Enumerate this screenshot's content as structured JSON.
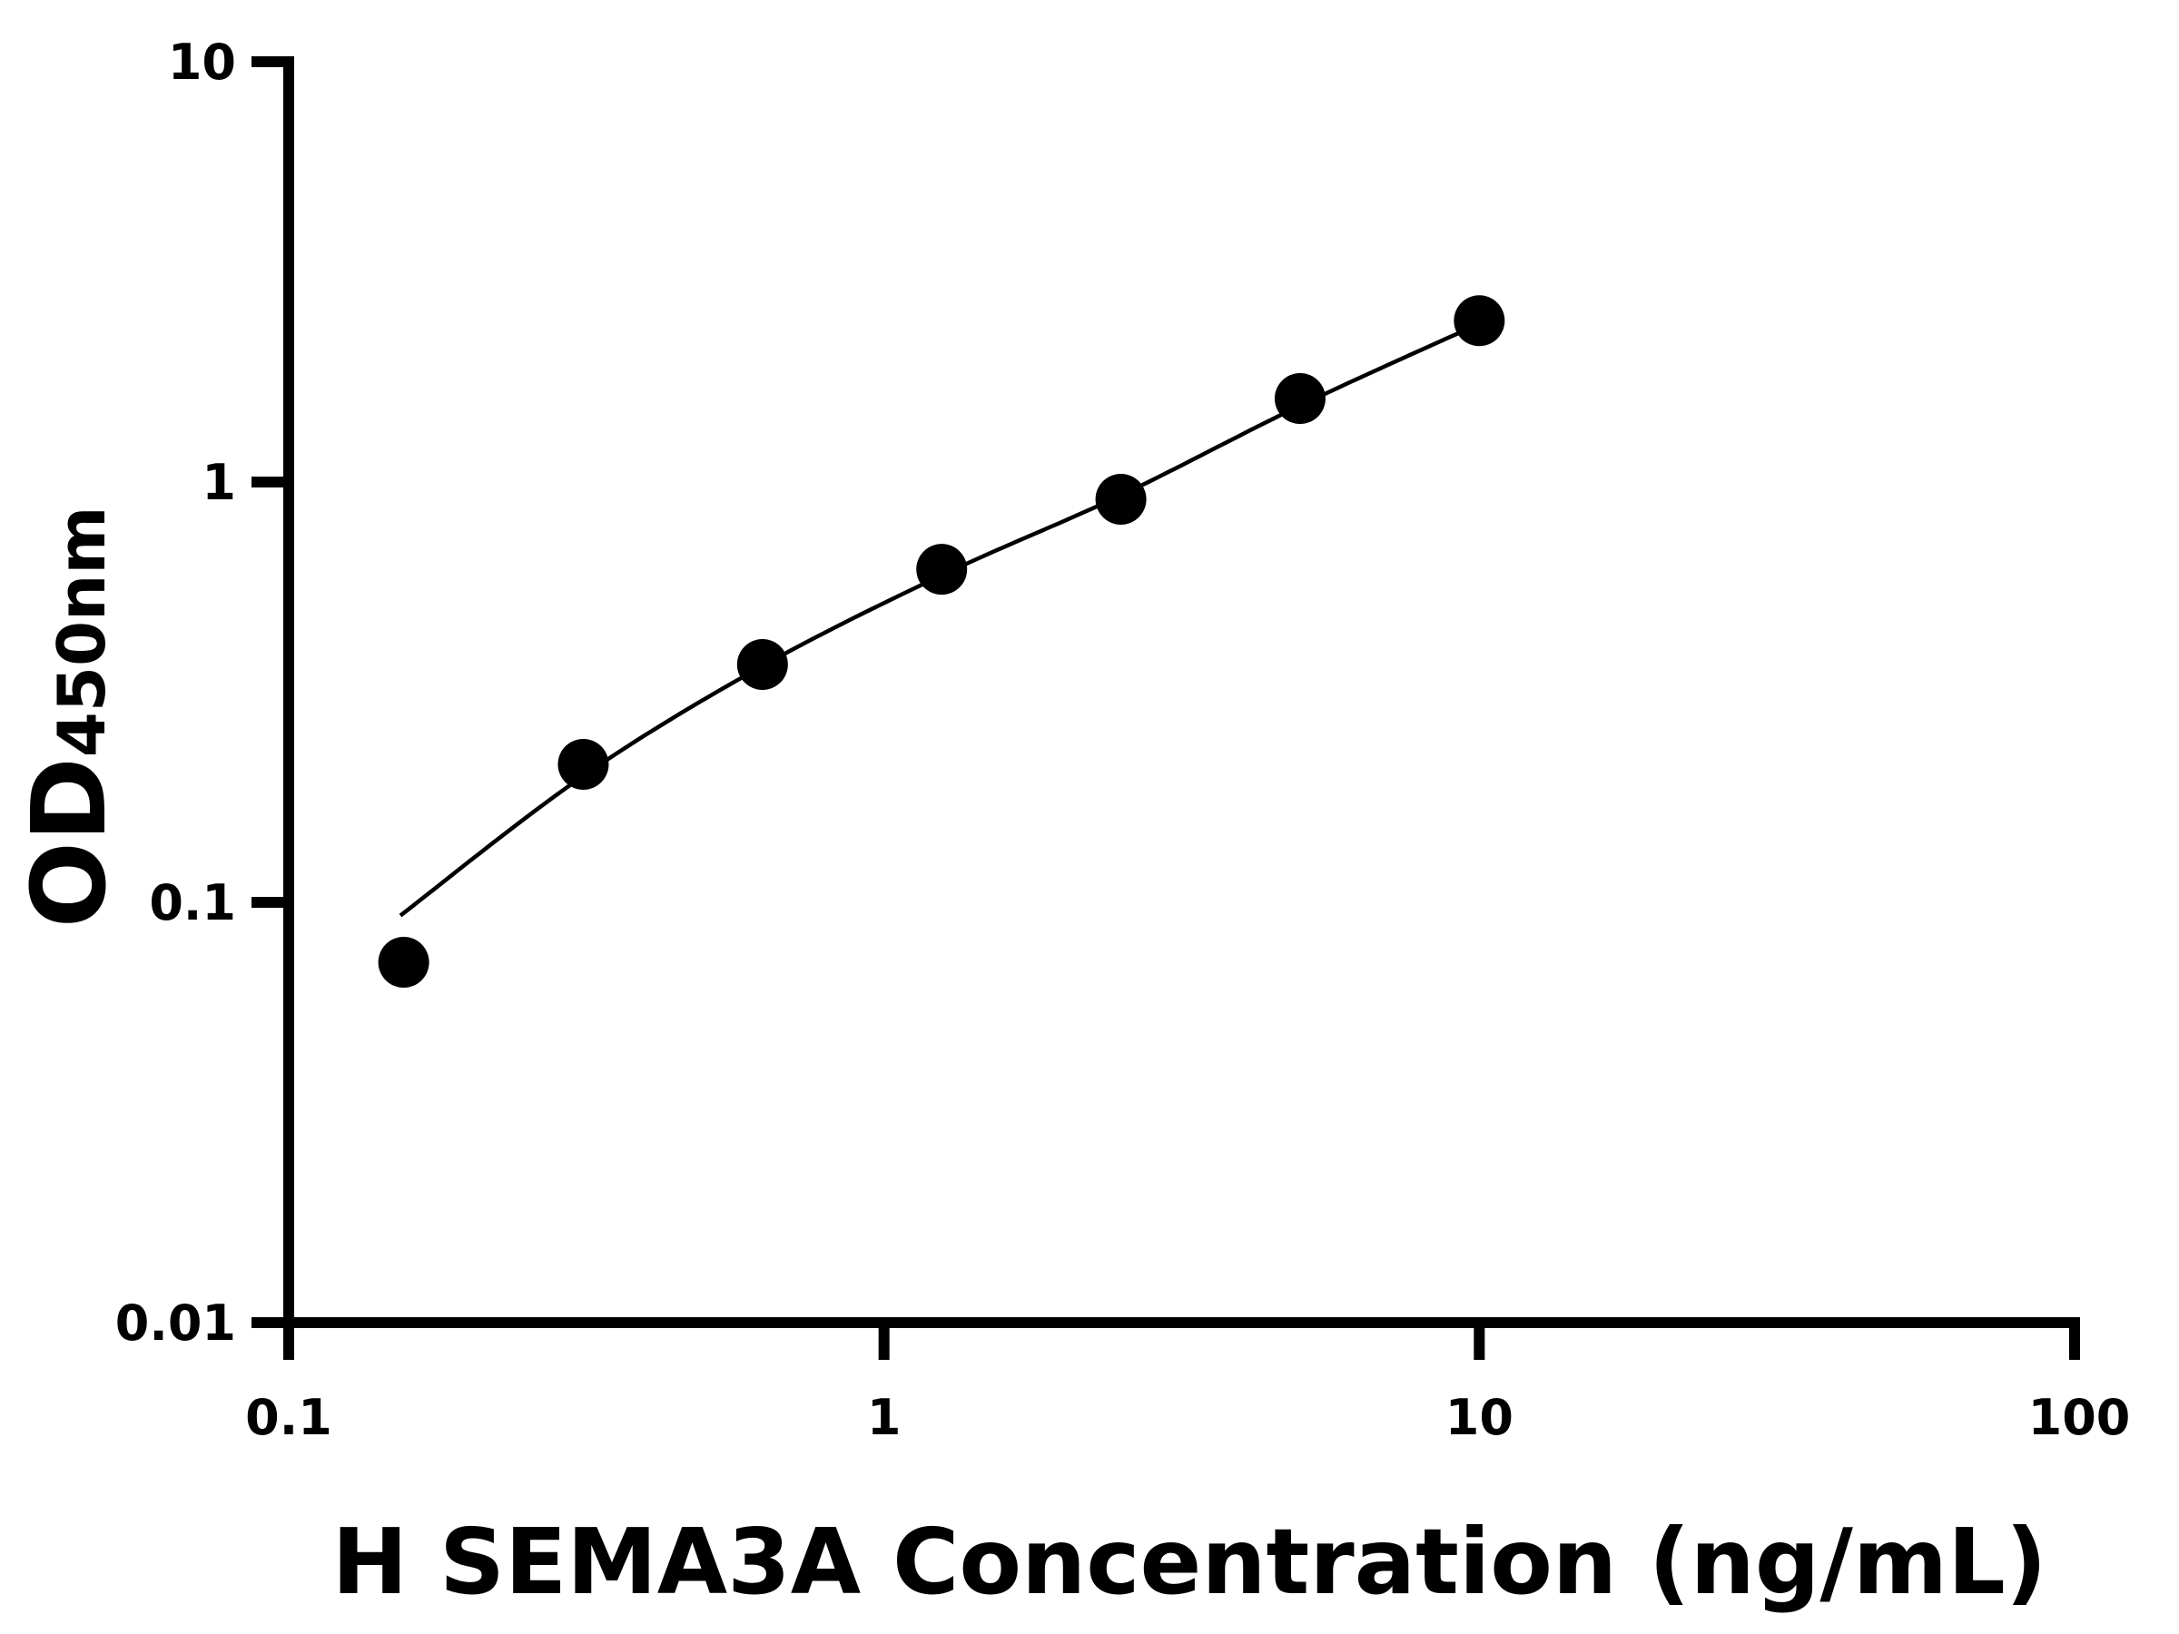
{
  "chart_data": {
    "type": "scatter",
    "xlabel": "H SEMA3A Concentration (ng/mL)",
    "ylabel_main": "OD",
    "ylabel_sub": "450nm",
    "x_scale": "log",
    "y_scale": "log",
    "xlim": [
      0.1,
      100
    ],
    "ylim": [
      0.01,
      10
    ],
    "x_ticks": [
      "0.1",
      "1",
      "10",
      "100"
    ],
    "y_ticks": [
      "0.01",
      "0.1",
      "1",
      "10"
    ],
    "grid": false,
    "legend": "none",
    "marker_color": "#000000",
    "line_color": "#000000",
    "points": {
      "x": [
        0.156,
        0.3125,
        0.625,
        1.25,
        2.5,
        5,
        10
      ],
      "y": [
        0.072,
        0.213,
        0.368,
        0.62,
        0.91,
        1.58,
        2.42
      ]
    },
    "fit_curve": {
      "x": [
        0.154,
        0.3125,
        0.625,
        1.25,
        2.5,
        5,
        10
      ],
      "y": [
        0.093,
        0.2,
        0.365,
        0.6,
        0.93,
        1.52,
        2.38
      ]
    }
  }
}
